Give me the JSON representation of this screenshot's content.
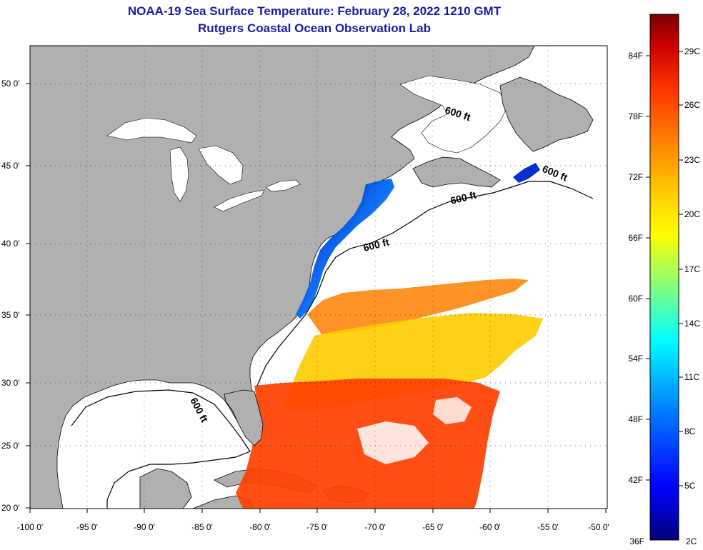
{
  "title_line1": "NOAA-19 Sea Surface Temperature:  February 28, 2022 1210 GMT",
  "title_line2": "Rutgers Coastal Ocean Observation Lab",
  "map": {
    "lon_labels": [
      "-100 0'",
      "-95 0'",
      "-90 0'",
      "-85 0'",
      "-80 0'",
      "-75 0'",
      "-70 0'",
      "-65 0'",
      "-60 0'",
      "-55 0'",
      "-50 0'"
    ],
    "lat_labels": [
      "50 0'",
      "45 0'",
      "40 0'",
      "35 0'",
      "30 0'",
      "25 0'",
      "20 0'"
    ],
    "contour_label": "600 ft",
    "colors": {
      "land": "#b0b0b0",
      "no_data": "#ffffff",
      "coastline": "#000000"
    }
  },
  "colorbar": {
    "fahrenheit_labels": [
      "84F",
      "78F",
      "72F",
      "66F",
      "60F",
      "54F",
      "48F",
      "42F",
      "36F"
    ],
    "celsius_labels": [
      "29C",
      "26C",
      "23C",
      "20C",
      "17C",
      "14C",
      "11C",
      "8C",
      "5C",
      "2C"
    ],
    "colors": [
      "#7a0000",
      "#cc0000",
      "#ff3300",
      "#ff8000",
      "#ffcc00",
      "#ffff00",
      "#80ff80",
      "#00ffff",
      "#0080ff",
      "#0000ff",
      "#00007a"
    ]
  }
}
